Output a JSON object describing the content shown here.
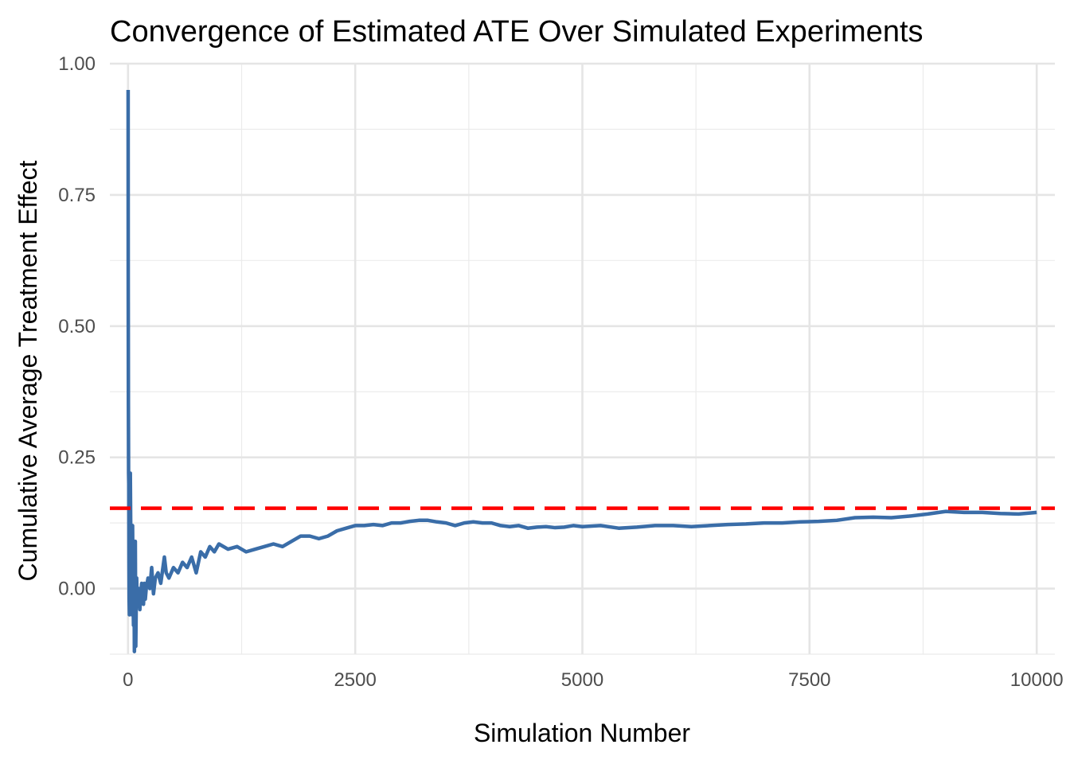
{
  "chart_data": {
    "type": "line",
    "title": "Convergence of Estimated ATE Over Simulated Experiments",
    "xlabel": "Simulation Number",
    "ylabel": "Cumulative Average Treatment Effect",
    "xlim": [
      -200,
      10200
    ],
    "ylim": [
      -0.125,
      1.0
    ],
    "x_ticks": [
      0,
      2500,
      5000,
      7500,
      10000
    ],
    "x_tick_labels": [
      "0",
      "2500",
      "5000",
      "7500",
      "10000"
    ],
    "y_ticks": [
      0.0,
      0.25,
      0.5,
      0.75,
      1.0
    ],
    "y_tick_labels": [
      "0.00",
      "0.25",
      "0.50",
      "0.75",
      "1.00"
    ],
    "x_minor_ticks": [
      1250,
      3750,
      6250,
      8750
    ],
    "y_minor_ticks": [
      -0.125,
      0.125,
      0.375,
      0.625,
      0.875
    ],
    "grid": true,
    "series": [
      {
        "color": "#3a6da8",
        "x": [
          1,
          2,
          4,
          6,
          8,
          10,
          12,
          15,
          20,
          25,
          30,
          35,
          40,
          45,
          50,
          55,
          60,
          65,
          70,
          75,
          80,
          85,
          90,
          95,
          100,
          110,
          120,
          130,
          140,
          150,
          160,
          170,
          180,
          190,
          200,
          220,
          240,
          260,
          280,
          300,
          330,
          360,
          400,
          420,
          450,
          500,
          550,
          600,
          650,
          700,
          750,
          800,
          850,
          900,
          950,
          1000,
          1100,
          1200,
          1300,
          1400,
          1500,
          1600,
          1700,
          1800,
          1900,
          2000,
          2100,
          2200,
          2300,
          2400,
          2500,
          2600,
          2700,
          2800,
          2900,
          3000,
          3100,
          3200,
          3300,
          3400,
          3500,
          3600,
          3700,
          3800,
          3900,
          4000,
          4100,
          4200,
          4300,
          4400,
          4500,
          4600,
          4700,
          4800,
          4900,
          5000,
          5200,
          5400,
          5600,
          5800,
          6000,
          6200,
          6400,
          6600,
          6800,
          7000,
          7200,
          7400,
          7600,
          7800,
          8000,
          8200,
          8400,
          8600,
          8800,
          9000,
          9200,
          9400,
          9600,
          9800,
          10000
        ],
        "values": [
          0.95,
          0.6,
          0.35,
          0.22,
          0.2,
          0.05,
          -0.02,
          -0.05,
          -0.03,
          0.22,
          0.1,
          0.05,
          -0.03,
          -0.05,
          0.12,
          0.0,
          -0.07,
          0.05,
          -0.12,
          -0.04,
          0.09,
          -0.11,
          -0.03,
          0.02,
          -0.03,
          -0.01,
          0.0,
          -0.04,
          -0.01,
          0.01,
          -0.02,
          -0.03,
          0.01,
          -0.02,
          0.0,
          0.02,
          0.0,
          0.04,
          -0.01,
          0.02,
          0.03,
          0.01,
          0.06,
          0.03,
          0.02,
          0.04,
          0.03,
          0.05,
          0.04,
          0.06,
          0.03,
          0.07,
          0.06,
          0.08,
          0.07,
          0.085,
          0.075,
          0.08,
          0.07,
          0.075,
          0.08,
          0.085,
          0.08,
          0.09,
          0.1,
          0.1,
          0.095,
          0.1,
          0.11,
          0.115,
          0.12,
          0.12,
          0.122,
          0.12,
          0.125,
          0.125,
          0.128,
          0.13,
          0.13,
          0.127,
          0.125,
          0.12,
          0.125,
          0.127,
          0.125,
          0.125,
          0.12,
          0.118,
          0.12,
          0.115,
          0.117,
          0.118,
          0.116,
          0.117,
          0.12,
          0.118,
          0.12,
          0.115,
          0.117,
          0.12,
          0.12,
          0.118,
          0.12,
          0.122,
          0.123,
          0.125,
          0.125,
          0.127,
          0.128,
          0.13,
          0.135,
          0.136,
          0.135,
          0.138,
          0.142,
          0.147,
          0.145,
          0.145,
          0.143,
          0.142,
          0.145
        ]
      }
    ],
    "reference_line": {
      "y": 0.153,
      "color": "#ff0000",
      "style": "dashed"
    }
  }
}
